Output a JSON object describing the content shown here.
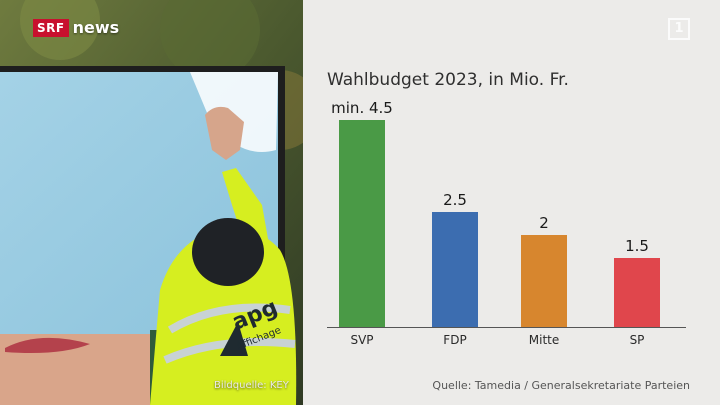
{
  "brand": {
    "badge": "SRF",
    "name": "news"
  },
  "photo": {
    "credit": "Bildquelle: KEY",
    "jacket_logo": "apg",
    "jacket_sub": "Affichage"
  },
  "watermark": {
    "mark": "1"
  },
  "chart_title": "Wahlbudget 2023, in Mio. Fr.",
  "source": "Quelle: Tamedia / Generalsekretariate Parteien",
  "chart_data": {
    "type": "bar",
    "title": "Wahlbudget 2023, in Mio. Fr.",
    "categories": [
      "SVP",
      "FDP",
      "Mitte",
      "SP"
    ],
    "values": [
      4.5,
      2.5,
      2,
      1.5
    ],
    "data_labels": [
      "min. 4.5",
      "2.5",
      "2",
      "1.5"
    ],
    "colors": [
      "#4a9a46",
      "#3c6db0",
      "#d7862e",
      "#e0464c"
    ],
    "ylim": [
      0,
      4.5
    ],
    "grid": false,
    "xlabel": "",
    "ylabel": ""
  }
}
